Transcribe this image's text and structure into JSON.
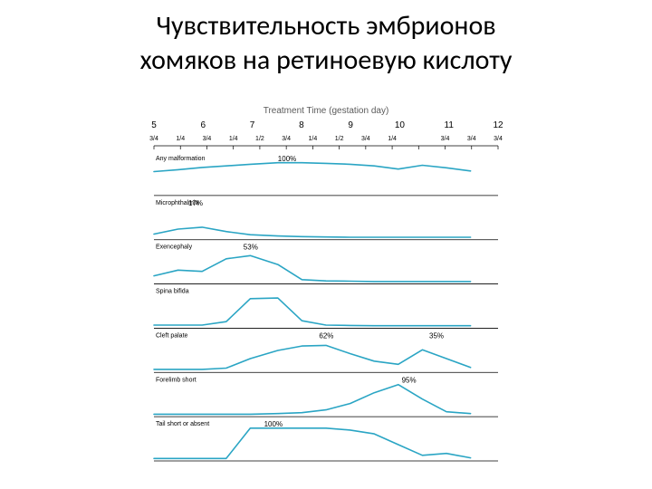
{
  "title_line1": "Чувствительность эмбрионов",
  "title_line2": "хомяков на ретиноевую кислоту",
  "chart": {
    "type": "line",
    "line_color": "#2aa5c4",
    "axis_color": "#000000",
    "axis_title": "Treatment Time (gestation day)",
    "axis_title_fontsize": 10,
    "axis_title_color": "#5a5a5a",
    "x_days": [
      "5",
      "6",
      "7",
      "8",
      "9",
      "10",
      "11",
      "12"
    ],
    "x_fracs": [
      "3/4",
      "1/4",
      "3/4",
      "1/4",
      "1/2",
      "3/4",
      "1/4",
      "1/2",
      "3/4",
      "1/4",
      "",
      "3/4",
      "3/4",
      "3/4"
    ],
    "panels": [
      {
        "label": "Any malformation",
        "peak": "100%",
        "peak_x": 0.36,
        "pts": [
          [
            0.0,
            0.3
          ],
          [
            0.07,
            0.24
          ],
          [
            0.14,
            0.17
          ],
          [
            0.21,
            0.12
          ],
          [
            0.28,
            0.07
          ],
          [
            0.36,
            0.02
          ],
          [
            0.43,
            0.02
          ],
          [
            0.5,
            0.04
          ],
          [
            0.57,
            0.07
          ],
          [
            0.64,
            0.12
          ],
          [
            0.71,
            0.22
          ],
          [
            0.78,
            0.1
          ],
          [
            0.85,
            0.18
          ],
          [
            0.92,
            0.28
          ]
        ]
      },
      {
        "label": "Microphthalmia",
        "peak": "17%",
        "peak_x": 0.1,
        "pts": [
          [
            0.0,
            0.88
          ],
          [
            0.07,
            0.72
          ],
          [
            0.14,
            0.66
          ],
          [
            0.21,
            0.8
          ],
          [
            0.28,
            0.9
          ],
          [
            0.36,
            0.94
          ],
          [
            0.43,
            0.96
          ],
          [
            0.5,
            0.97
          ],
          [
            0.57,
            0.98
          ],
          [
            0.64,
            0.98
          ],
          [
            0.71,
            0.98
          ],
          [
            0.78,
            0.98
          ],
          [
            0.85,
            0.98
          ],
          [
            0.92,
            0.98
          ]
        ]
      },
      {
        "label": "Exencephaly",
        "peak": "53%",
        "peak_x": 0.26,
        "pts": [
          [
            0.0,
            0.8
          ],
          [
            0.07,
            0.62
          ],
          [
            0.14,
            0.66
          ],
          [
            0.21,
            0.26
          ],
          [
            0.28,
            0.16
          ],
          [
            0.36,
            0.44
          ],
          [
            0.43,
            0.92
          ],
          [
            0.5,
            0.96
          ],
          [
            0.57,
            0.97
          ],
          [
            0.64,
            0.98
          ],
          [
            0.71,
            0.98
          ],
          [
            0.78,
            0.98
          ],
          [
            0.85,
            0.98
          ],
          [
            0.92,
            0.98
          ]
        ]
      },
      {
        "label": "Spina bifida",
        "peak": "",
        "peak_x": 0.0,
        "pts": [
          [
            0.0,
            0.96
          ],
          [
            0.07,
            0.96
          ],
          [
            0.14,
            0.96
          ],
          [
            0.21,
            0.85
          ],
          [
            0.28,
            0.12
          ],
          [
            0.36,
            0.1
          ],
          [
            0.43,
            0.82
          ],
          [
            0.5,
            0.96
          ],
          [
            0.57,
            0.97
          ],
          [
            0.64,
            0.98
          ],
          [
            0.71,
            0.98
          ],
          [
            0.78,
            0.98
          ],
          [
            0.85,
            0.98
          ],
          [
            0.92,
            0.98
          ]
        ]
      },
      {
        "label": "Cleft palate",
        "peak": "62%",
        "peak_x": 0.48,
        "peak2": "35%",
        "peak2_x": 0.8,
        "pts": [
          [
            0.0,
            0.96
          ],
          [
            0.07,
            0.96
          ],
          [
            0.14,
            0.96
          ],
          [
            0.21,
            0.92
          ],
          [
            0.28,
            0.62
          ],
          [
            0.36,
            0.36
          ],
          [
            0.43,
            0.22
          ],
          [
            0.5,
            0.2
          ],
          [
            0.57,
            0.46
          ],
          [
            0.64,
            0.7
          ],
          [
            0.71,
            0.8
          ],
          [
            0.78,
            0.34
          ],
          [
            0.85,
            0.62
          ],
          [
            0.92,
            0.9
          ]
        ]
      },
      {
        "label": "Forelimb short",
        "peak": "95%",
        "peak_x": 0.72,
        "pts": [
          [
            0.0,
            0.98
          ],
          [
            0.07,
            0.98
          ],
          [
            0.14,
            0.98
          ],
          [
            0.21,
            0.98
          ],
          [
            0.28,
            0.98
          ],
          [
            0.36,
            0.96
          ],
          [
            0.43,
            0.93
          ],
          [
            0.5,
            0.84
          ],
          [
            0.57,
            0.64
          ],
          [
            0.64,
            0.3
          ],
          [
            0.71,
            0.04
          ],
          [
            0.78,
            0.5
          ],
          [
            0.85,
            0.9
          ],
          [
            0.92,
            0.96
          ]
        ]
      },
      {
        "label": "Tail short or absent",
        "peak": "100%",
        "peak_x": 0.32,
        "pts": [
          [
            0.0,
            0.98
          ],
          [
            0.07,
            0.98
          ],
          [
            0.14,
            0.98
          ],
          [
            0.21,
            0.98
          ],
          [
            0.28,
            0.02
          ],
          [
            0.36,
            0.02
          ],
          [
            0.43,
            0.02
          ],
          [
            0.5,
            0.02
          ],
          [
            0.57,
            0.08
          ],
          [
            0.64,
            0.2
          ],
          [
            0.71,
            0.54
          ],
          [
            0.78,
            0.88
          ],
          [
            0.85,
            0.82
          ],
          [
            0.92,
            0.96
          ]
        ]
      }
    ],
    "label_fontsize": 7,
    "peak_fontsize": 8,
    "day_fontsize": 10,
    "frac_fontsize": 7,
    "background_color": "#ffffff"
  }
}
